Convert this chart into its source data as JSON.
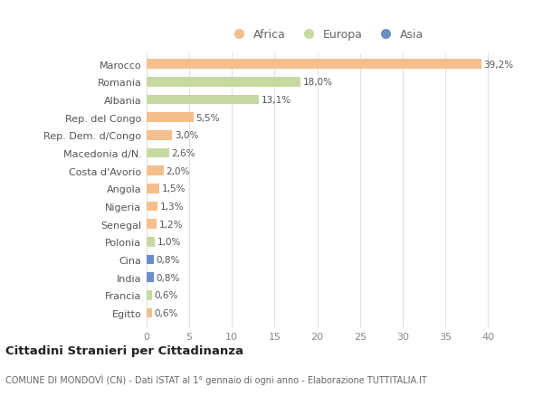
{
  "categories": [
    "Egitto",
    "Francia",
    "India",
    "Cina",
    "Polonia",
    "Senegal",
    "Nigeria",
    "Angola",
    "Costa d'Avorio",
    "Macedonia d/N.",
    "Rep. Dem. d/Congo",
    "Rep. del Congo",
    "Albania",
    "Romania",
    "Marocco"
  ],
  "values": [
    0.6,
    0.6,
    0.8,
    0.8,
    1.0,
    1.2,
    1.3,
    1.5,
    2.0,
    2.6,
    3.0,
    5.5,
    13.1,
    18.0,
    39.2
  ],
  "labels": [
    "0,6%",
    "0,6%",
    "0,8%",
    "0,8%",
    "1,0%",
    "1,2%",
    "1,3%",
    "1,5%",
    "2,0%",
    "2,6%",
    "3,0%",
    "5,5%",
    "13,1%",
    "18,0%",
    "39,2%"
  ],
  "continents": [
    "Africa",
    "Europa",
    "Asia",
    "Asia",
    "Europa",
    "Africa",
    "Africa",
    "Africa",
    "Africa",
    "Europa",
    "Africa",
    "Africa",
    "Europa",
    "Europa",
    "Africa"
  ],
  "colors": {
    "Africa": "#f5be8d",
    "Europa": "#c5d9a0",
    "Asia": "#6b8ec9"
  },
  "title": "Cittadini Stranieri per Cittadinanza",
  "subtitle": "COMUNE DI MONDOVÌ (CN) - Dati ISTAT al 1° gennaio di ogni anno - Elaborazione TUTTITALIA.IT",
  "xlim": [
    0,
    42
  ],
  "xticks": [
    0,
    5,
    10,
    15,
    20,
    25,
    30,
    35,
    40
  ],
  "background_color": "#ffffff",
  "bar_height": 0.55,
  "grid_color": "#e0e0e0"
}
